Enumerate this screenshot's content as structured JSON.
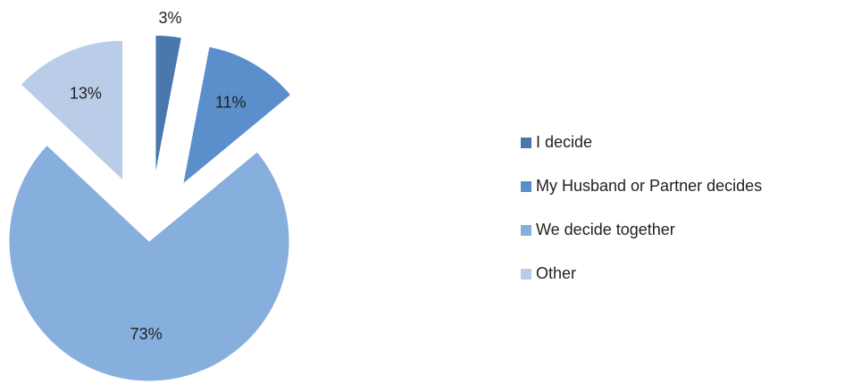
{
  "chart_data": {
    "type": "pie",
    "categories": [
      "I decide",
      "My Husband or Partner decides",
      "We decide together",
      "Other"
    ],
    "values": [
      3,
      11,
      73,
      13
    ],
    "value_labels": [
      "3%",
      "11%",
      "73%",
      "13%"
    ],
    "colors": [
      "#4a78ad",
      "#5a8fcb",
      "#87afdd",
      "#b9cde9"
    ],
    "exploded": [
      true,
      true,
      false,
      true
    ],
    "legend": "right"
  }
}
